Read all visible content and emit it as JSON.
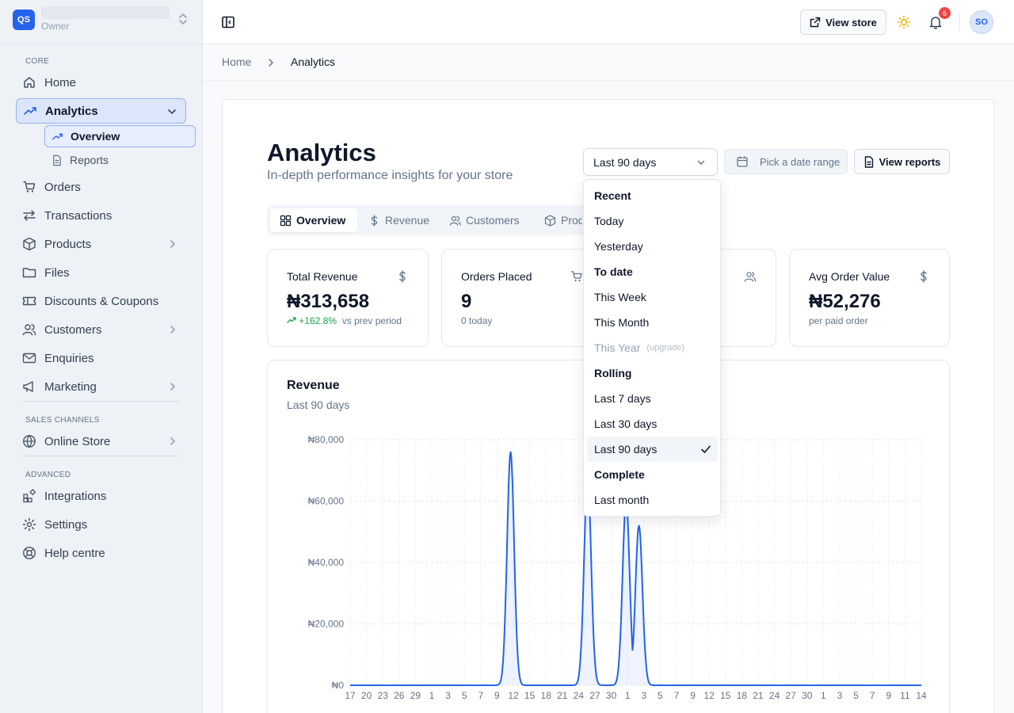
{
  "store": {
    "badge": "QS",
    "role": "Owner"
  },
  "sidebar": {
    "sections": {
      "core": "CORE",
      "sales": "SALES CHANNELS",
      "advanced": "ADVANCED"
    },
    "items": {
      "home": "Home",
      "analytics": "Analytics",
      "overview": "Overview",
      "reports": "Reports",
      "orders": "Orders",
      "transactions": "Transactions",
      "products": "Products",
      "files": "Files",
      "discounts": "Discounts & Coupons",
      "customers": "Customers",
      "enquiries": "Enquiries",
      "marketing": "Marketing",
      "online_store": "Online Store",
      "integrations": "Integrations",
      "settings": "Settings",
      "help": "Help centre"
    }
  },
  "topbar": {
    "view_store": "View store",
    "notifications": "6",
    "avatar": "SO"
  },
  "breadcrumb": {
    "home": "Home",
    "current": "Analytics"
  },
  "page": {
    "title": "Analytics",
    "subtitle": "In-depth performance insights for your store"
  },
  "controls": {
    "range": "Last 90 days",
    "date_placeholder": "Pick a date range",
    "view_reports": "View reports"
  },
  "tabs": {
    "overview": "Overview",
    "revenue": "Revenue",
    "customers": "Customers",
    "products": "Products"
  },
  "stats": {
    "revenue": {
      "label": "Total Revenue",
      "value": "₦313,658",
      "change": "+162.8%",
      "note": "vs prev period"
    },
    "orders": {
      "label": "Orders Placed",
      "value": "9",
      "note": "0 today"
    },
    "avg": {
      "label": "Avg Order Value",
      "value": "₦52,276",
      "note": "per paid order"
    }
  },
  "dropdown": {
    "recent": "Recent",
    "today": "Today",
    "yesterday": "Yesterday",
    "to_date": "To date",
    "this_week": "This Week",
    "this_month": "This Month",
    "this_year": "This Year",
    "upgrade": "(upgrade)",
    "rolling": "Rolling",
    "last7": "Last 7 days",
    "last30": "Last 30 days",
    "last90": "Last 90 days",
    "complete": "Complete",
    "last_month": "Last month"
  },
  "chart_data": {
    "type": "area",
    "title": "Revenue",
    "subtitle": "Last 90 days",
    "ylim": [
      0,
      80000
    ],
    "yticks": [
      "₦0",
      "₦20,000",
      "₦40,000",
      "₦60,000",
      "₦80,000"
    ],
    "x": [
      "17",
      "20",
      "23",
      "26",
      "29",
      "1",
      "3",
      "5",
      "7",
      "9",
      "12",
      "15",
      "18",
      "21",
      "24",
      "27",
      "30",
      "1",
      "3",
      "5",
      "7",
      "9",
      "12",
      "15",
      "18",
      "21",
      "24",
      "27",
      "30",
      "1",
      "3",
      "5",
      "7",
      "9",
      "11",
      "14"
    ],
    "peaks": [
      {
        "day_index": 25,
        "value": 76000
      },
      {
        "day_index": 37,
        "value": 68000
      },
      {
        "day_index": 43,
        "value": 60000
      },
      {
        "day_index": 45,
        "value": 52000
      }
    ],
    "series_days": 90,
    "color": "#2563eb"
  }
}
